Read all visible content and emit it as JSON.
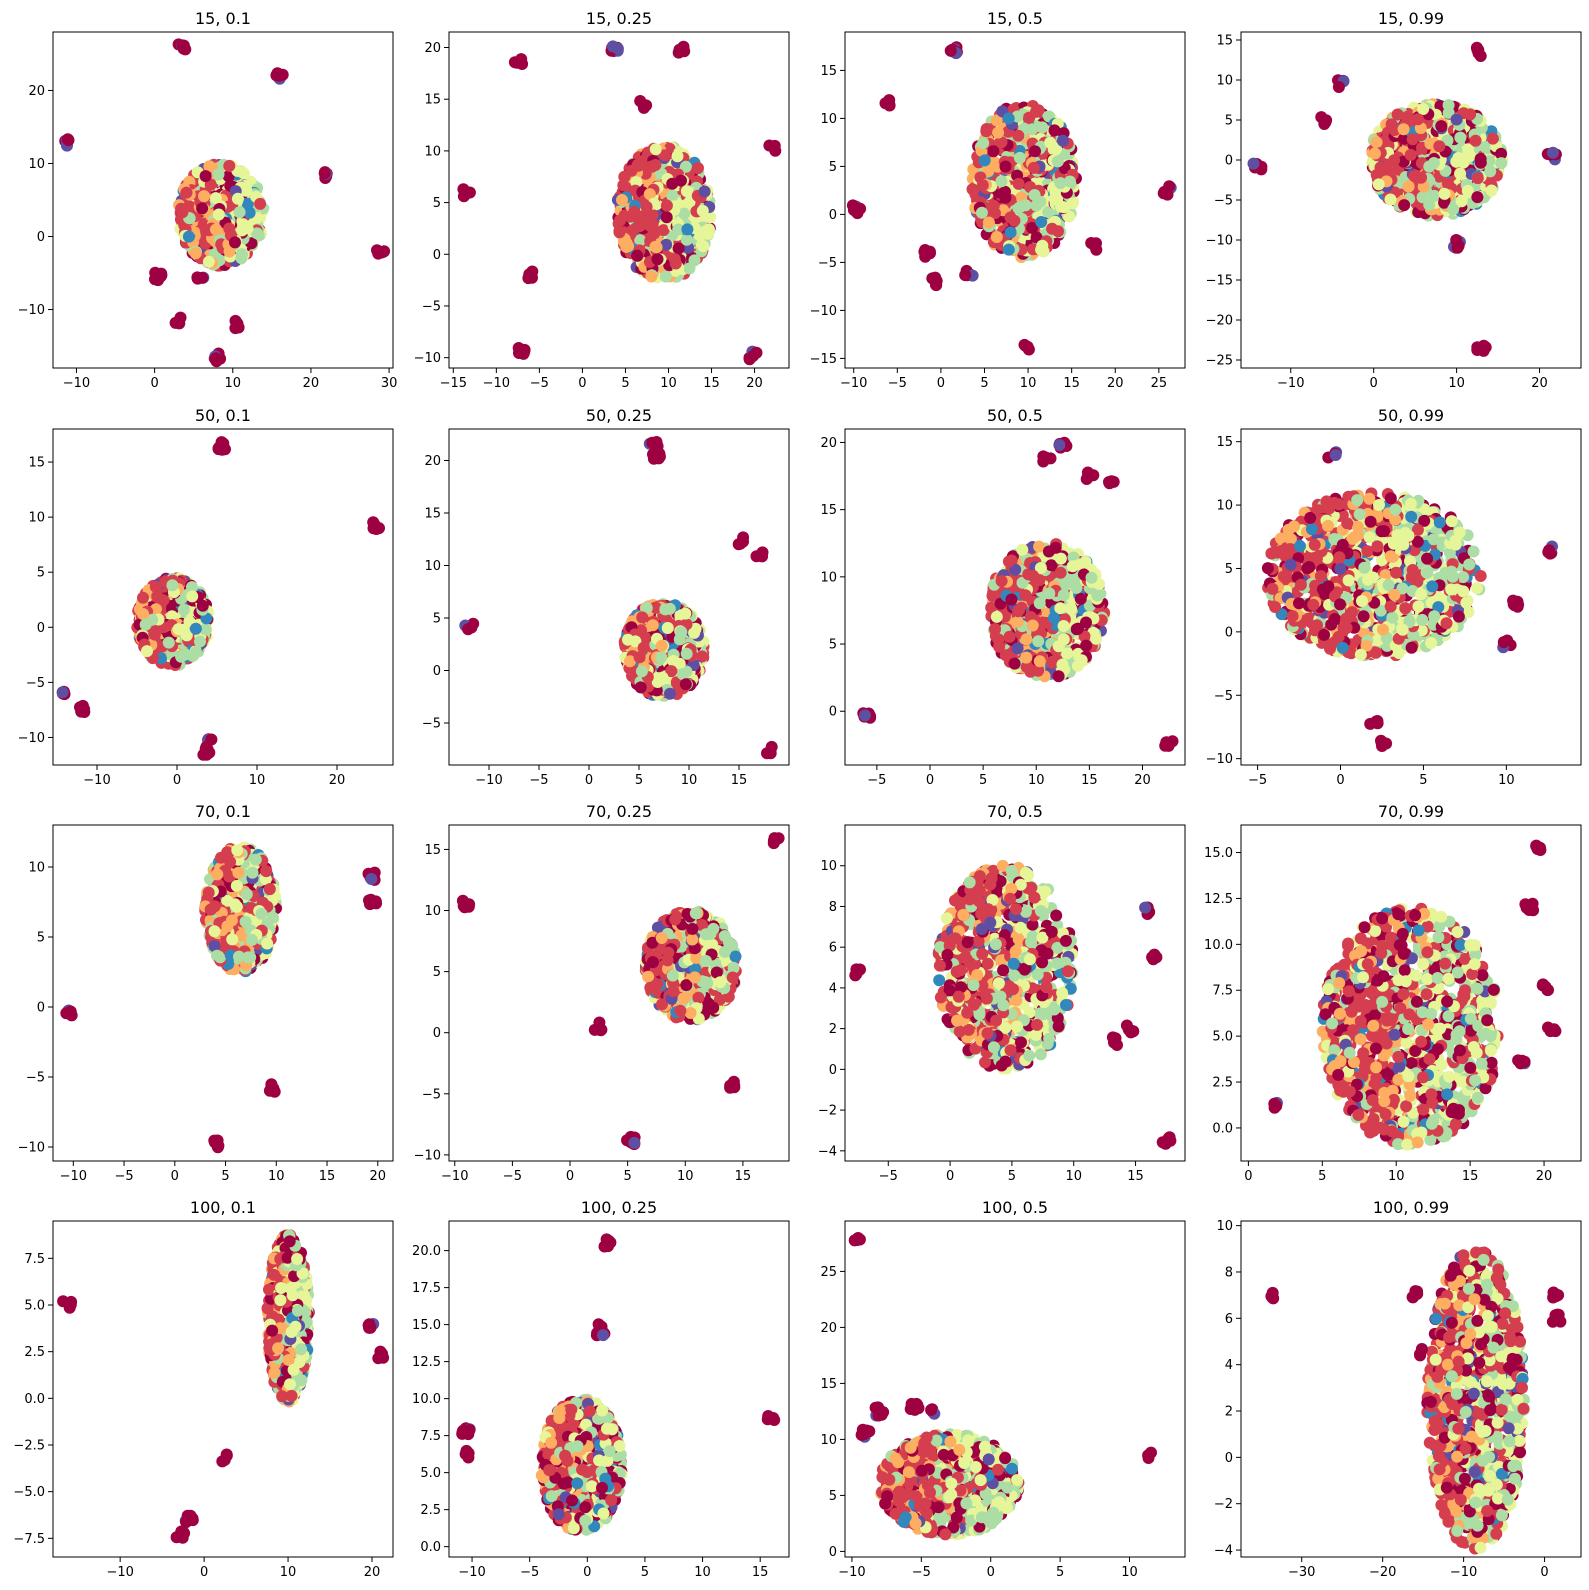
{
  "figure": {
    "palette": [
      "#9e0142",
      "#d53e4f",
      "#fdae61",
      "#e6f598",
      "#abdda4",
      "#3288bd",
      "#5e4fa2"
    ]
  },
  "chart_data": [
    {
      "type": "scatter",
      "title": "15, 0.1",
      "xlim": [
        -13,
        30.5
      ],
      "ylim": [
        -18,
        28
      ],
      "xticks": [
        -10,
        0,
        10,
        20,
        30
      ],
      "yticks": [
        -10,
        0,
        10,
        20
      ],
      "cloud": {
        "cx": 8.5,
        "cy": 3,
        "rx": 5.5,
        "ry": 7,
        "n": 700
      },
      "outliers": [
        [
          3.5,
          26
        ],
        [
          16,
          22
        ],
        [
          -11,
          13
        ],
        [
          22,
          8.5
        ],
        [
          29,
          -2
        ],
        [
          0.5,
          -5.5
        ],
        [
          6,
          -5.5
        ],
        [
          3,
          -11.5
        ],
        [
          10.5,
          -12
        ],
        [
          8,
          -16.5
        ]
      ]
    },
    {
      "type": "scatter",
      "title": "15, 0.25",
      "xlim": [
        -15.5,
        24
      ],
      "ylim": [
        -11,
        21.5
      ],
      "xticks": [
        -15,
        -10,
        -5,
        0,
        5,
        10,
        15,
        20
      ],
      "yticks": [
        -10,
        -5,
        0,
        5,
        10,
        15,
        20
      ],
      "cloud": {
        "cx": 9.5,
        "cy": 4,
        "rx": 5.5,
        "ry": 6.5,
        "n": 700
      },
      "outliers": [
        [
          -7.5,
          18.5
        ],
        [
          3.8,
          19.8
        ],
        [
          11.5,
          19.7
        ],
        [
          22,
          10.2
        ],
        [
          -13.5,
          6
        ],
        [
          7,
          14.5
        ],
        [
          -6,
          -2
        ],
        [
          -7,
          -9.3
        ],
        [
          19.8,
          -9.8
        ]
      ]
    },
    {
      "type": "scatter",
      "title": "15, 0.5",
      "xlim": [
        -11,
        28
      ],
      "ylim": [
        -16,
        19
      ],
      "xticks": [
        -10,
        -5,
        0,
        5,
        10,
        15,
        20,
        25
      ],
      "yticks": [
        -15,
        -10,
        -5,
        0,
        5,
        10,
        15
      ],
      "cloud": {
        "cx": 9.5,
        "cy": 3.5,
        "rx": 6,
        "ry": 8,
        "n": 700
      },
      "outliers": [
        [
          1.5,
          17
        ],
        [
          -6.3,
          11.5
        ],
        [
          -9.7,
          0.5
        ],
        [
          26,
          2.5
        ],
        [
          -1.5,
          -4
        ],
        [
          -0.7,
          -7
        ],
        [
          3.2,
          -6.2
        ],
        [
          17.5,
          -3.3
        ],
        [
          10,
          -14
        ]
      ]
    },
    {
      "type": "scatter",
      "title": "15, 0.99",
      "xlim": [
        -16,
        25
      ],
      "ylim": [
        -26,
        16
      ],
      "xticks": [
        -10,
        0,
        10,
        20
      ],
      "yticks": [
        -25,
        -20,
        -15,
        -10,
        -5,
        0,
        5,
        10,
        15
      ],
      "cloud": {
        "cx": 7.5,
        "cy": 0,
        "rx": 8,
        "ry": 7,
        "n": 800
      },
      "outliers": [
        [
          12.8,
          13.5
        ],
        [
          -4,
          9.5
        ],
        [
          -6,
          5
        ],
        [
          -14,
          -0.7
        ],
        [
          21.5,
          0.5
        ],
        [
          10,
          -10.5
        ],
        [
          13,
          -23.5
        ]
      ]
    },
    {
      "type": "scatter",
      "title": "50, 0.1",
      "xlim": [
        -15.5,
        27
      ],
      "ylim": [
        -12.5,
        18
      ],
      "xticks": [
        -10,
        0,
        10,
        20
      ],
      "yticks": [
        -10,
        -5,
        0,
        5,
        10,
        15
      ],
      "cloud": {
        "cx": -0.5,
        "cy": 0.5,
        "rx": 4.5,
        "ry": 4,
        "n": 700
      },
      "outliers": [
        [
          5.5,
          16.5
        ],
        [
          25,
          9.2
        ],
        [
          -14,
          -5.8
        ],
        [
          -12,
          -7.5
        ],
        [
          4,
          -10.5
        ],
        [
          3.8,
          -11.2
        ]
      ]
    },
    {
      "type": "scatter",
      "title": "50, 0.25",
      "xlim": [
        -14,
        20
      ],
      "ylim": [
        -9,
        23
      ],
      "xticks": [
        -10,
        -5,
        0,
        5,
        10,
        15
      ],
      "yticks": [
        -5,
        0,
        5,
        10,
        15,
        20
      ],
      "cloud": {
        "cx": 7.5,
        "cy": 2,
        "rx": 4,
        "ry": 4.5,
        "n": 700
      },
      "outliers": [
        [
          6.5,
          21.5
        ],
        [
          6.8,
          20.5
        ],
        [
          15,
          12.3
        ],
        [
          17,
          11.2
        ],
        [
          -12,
          4.2
        ],
        [
          18,
          -7.5
        ]
      ]
    },
    {
      "type": "scatter",
      "title": "50, 0.5",
      "xlim": [
        -8,
        24
      ],
      "ylim": [
        -4,
        21
      ],
      "xticks": [
        -5,
        0,
        5,
        10,
        15,
        20
      ],
      "yticks": [
        0,
        5,
        10,
        15,
        20
      ],
      "cloud": {
        "cx": 11,
        "cy": 7.5,
        "rx": 5.5,
        "ry": 5,
        "n": 700
      },
      "outliers": [
        [
          12.5,
          19.7
        ],
        [
          11,
          18.8
        ],
        [
          15,
          17.5
        ],
        [
          17,
          17
        ],
        [
          -6,
          -0.3
        ],
        [
          22.5,
          -2.5
        ]
      ]
    },
    {
      "type": "scatter",
      "title": "50, 0.99",
      "xlim": [
        -6,
        14.5
      ],
      "ylim": [
        -10.5,
        16
      ],
      "xticks": [
        -5,
        0,
        5,
        10
      ],
      "yticks": [
        -10,
        -5,
        0,
        5,
        10,
        15
      ],
      "cloud": {
        "cx": 2,
        "cy": 4.5,
        "rx": 6.5,
        "ry": 6.5,
        "n": 1000
      },
      "outliers": [
        [
          -0.5,
          14
        ],
        [
          12.5,
          6.5
        ],
        [
          10.5,
          2.3
        ],
        [
          10,
          -1
        ],
        [
          2,
          -7
        ],
        [
          2.5,
          -8.7
        ]
      ]
    },
    {
      "type": "scatter",
      "title": "70, 0.1",
      "xlim": [
        -12,
        21.5
      ],
      "ylim": [
        -11,
        13
      ],
      "xticks": [
        -10,
        -5,
        0,
        5,
        10,
        15,
        20
      ],
      "yticks": [
        -10,
        -5,
        0,
        5,
        10
      ],
      "cloud": {
        "cx": 6.5,
        "cy": 7,
        "rx": 3.5,
        "ry": 4.5,
        "n": 700
      },
      "outliers": [
        [
          19.3,
          9.3
        ],
        [
          19.5,
          7.5
        ],
        [
          -10.3,
          -0.5
        ],
        [
          9.5,
          -5.8
        ],
        [
          4,
          -9.8
        ]
      ]
    },
    {
      "type": "scatter",
      "title": "70, 0.25",
      "xlim": [
        -10.5,
        19
      ],
      "ylim": [
        -10.5,
        17
      ],
      "xticks": [
        -10,
        -5,
        0,
        5,
        10,
        15
      ],
      "yticks": [
        -10,
        -5,
        0,
        5,
        10,
        15
      ],
      "cloud": {
        "cx": 10.5,
        "cy": 5.5,
        "rx": 4,
        "ry": 4.5,
        "n": 700
      },
      "outliers": [
        [
          18,
          15.6
        ],
        [
          -9,
          10.5
        ],
        [
          2.5,
          0.5
        ],
        [
          14,
          -4.2
        ],
        [
          5.3,
          -8.8
        ]
      ]
    },
    {
      "type": "scatter",
      "title": "70, 0.5",
      "xlim": [
        -8.5,
        19
      ],
      "ylim": [
        -4.5,
        12
      ],
      "xticks": [
        -5,
        0,
        5,
        10,
        15
      ],
      "yticks": [
        -4,
        -2,
        0,
        2,
        4,
        6,
        8,
        10
      ],
      "cloud": {
        "cx": 4.5,
        "cy": 5,
        "rx": 5.5,
        "ry": 5,
        "n": 800
      },
      "outliers": [
        [
          -7.5,
          4.8
        ],
        [
          16,
          7.8
        ],
        [
          16.5,
          5.5
        ],
        [
          14.5,
          2
        ],
        [
          13.5,
          1.4
        ],
        [
          17.5,
          -3.5
        ]
      ]
    },
    {
      "type": "scatter",
      "title": "70, 0.99",
      "xlim": [
        -0.5,
        22.5
      ],
      "ylim": [
        -1.8,
        16.5
      ],
      "xticks": [
        0,
        5,
        10,
        15,
        20
      ],
      "yticks": [
        0.0,
        2.5,
        5.0,
        7.5,
        10.0,
        12.5,
        15.0
      ],
      "cloud": {
        "cx": 11,
        "cy": 5.5,
        "rx": 6,
        "ry": 6.5,
        "n": 1000
      },
      "outliers": [
        [
          1.7,
          1.3
        ],
        [
          19.5,
          15.2
        ],
        [
          19,
          12
        ],
        [
          20,
          7.7
        ],
        [
          20.5,
          5.3
        ],
        [
          18.5,
          3.5
        ],
        [
          14,
          1
        ]
      ]
    },
    {
      "type": "scatter",
      "title": "100, 0.1",
      "xlim": [
        -18,
        22.5
      ],
      "ylim": [
        -8.5,
        9.5
      ],
      "xticks": [
        -10,
        0,
        10,
        20
      ],
      "yticks": [
        -7.5,
        -5.0,
        -2.5,
        0.0,
        2.5,
        5.0,
        7.5
      ],
      "cloud": {
        "cx": 10,
        "cy": 4.3,
        "rx": 2.5,
        "ry": 4.5,
        "n": 700
      },
      "outliers": [
        [
          -16.3,
          5
        ],
        [
          19.8,
          4
        ],
        [
          21,
          2.3
        ],
        [
          2.5,
          -3.2
        ],
        [
          -2.8,
          -7.3
        ],
        [
          -1.8,
          -6.5
        ]
      ]
    },
    {
      "type": "scatter",
      "title": "100, 0.25",
      "xlim": [
        -12,
        17.5
      ],
      "ylim": [
        -0.7,
        22
      ],
      "xticks": [
        -10,
        -5,
        0,
        5,
        10,
        15
      ],
      "yticks": [
        0.0,
        2.5,
        5.0,
        7.5,
        10.0,
        12.5,
        15.0,
        17.5,
        20.0
      ],
      "cloud": {
        "cx": -0.5,
        "cy": 5.5,
        "rx": 3.5,
        "ry": 4.5,
        "n": 800
      },
      "outliers": [
        [
          1.8,
          20.5
        ],
        [
          1.3,
          15
        ],
        [
          1.2,
          14.5
        ],
        [
          -10.5,
          7.8
        ],
        [
          -10.5,
          6.2
        ],
        [
          16,
          8.8
        ]
      ]
    },
    {
      "type": "scatter",
      "title": "100, 0.5",
      "xlim": [
        -10.5,
        14
      ],
      "ylim": [
        -0.5,
        29.5
      ],
      "xticks": [
        -10,
        -5,
        0,
        5,
        10
      ],
      "yticks": [
        0,
        5,
        10,
        15,
        20,
        25
      ],
      "cloud": {
        "cx": -3,
        "cy": 6,
        "rx": 5,
        "ry": 4.5,
        "n": 800
      },
      "outliers": [
        [
          -9.5,
          28
        ],
        [
          -8,
          12.5
        ],
        [
          -5.5,
          13
        ],
        [
          -4,
          12.5
        ],
        [
          -9,
          10.5
        ],
        [
          11.5,
          8.7
        ]
      ]
    },
    {
      "type": "scatter",
      "title": "100, 0.99",
      "xlim": [
        -37.5,
        4.5
      ],
      "ylim": [
        -4.3,
        10.2
      ],
      "xticks": [
        -30,
        -20,
        -10,
        0
      ],
      "yticks": [
        -4,
        -2,
        0,
        2,
        4,
        6,
        8,
        10
      ],
      "cloud": {
        "cx": -8.5,
        "cy": 2.5,
        "rx": 6,
        "ry": 6.5,
        "n": 1000
      },
      "outliers": [
        [
          -34,
          7
        ],
        [
          -16,
          7
        ],
        [
          -15,
          4.5
        ],
        [
          1.5,
          7
        ],
        [
          1.5,
          6
        ]
      ]
    }
  ]
}
